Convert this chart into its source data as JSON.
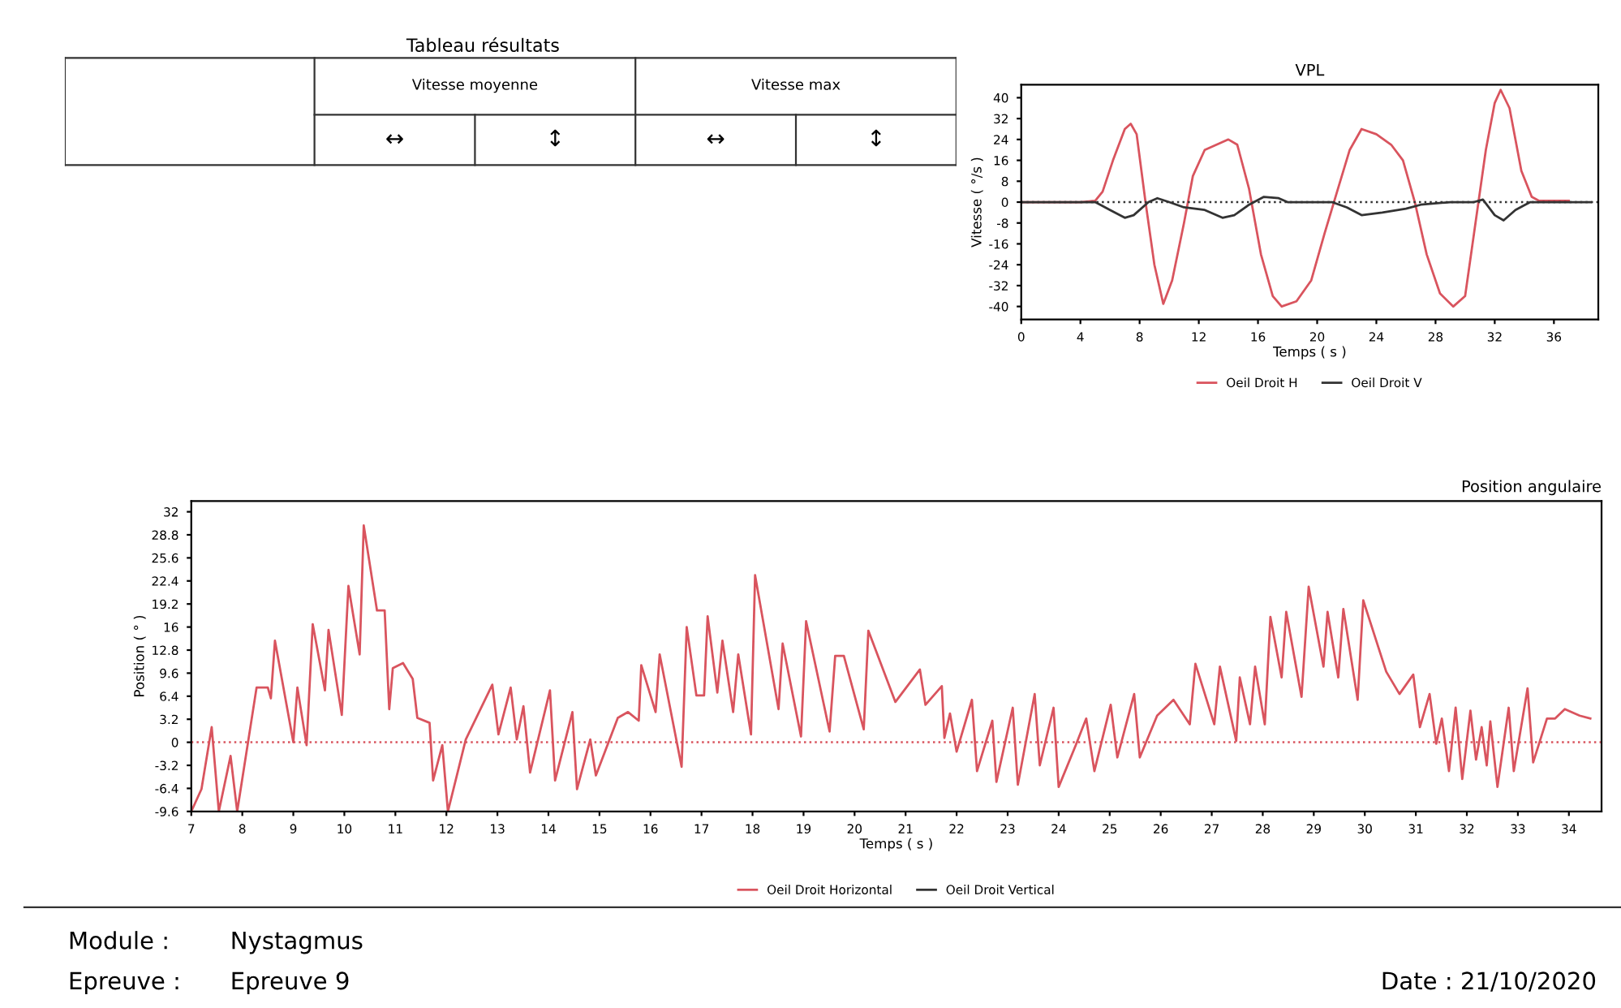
{
  "chart_data": [
    {
      "type": "other",
      "title": "Tableau résultats",
      "annotations": [
        "Vitesse moyenne",
        "Vitesse max",
        "↔",
        "↕",
        "↔",
        "↕"
      ]
    },
    {
      "type": "line",
      "title": "VPL",
      "xlabel": "Temps ( s )",
      "ylabel": "Vitesse ( °/s )",
      "xlim": [
        0,
        39
      ],
      "xticks": [
        0,
        4,
        8,
        12,
        16,
        20,
        24,
        28,
        32,
        36
      ],
      "ylim": [
        -45,
        45
      ],
      "yticks": [
        -40,
        -32,
        -24,
        -16,
        -8,
        0,
        8,
        16,
        24,
        32,
        40
      ],
      "grid": false,
      "legend": "bottom",
      "line_style": "solid",
      "marker": "none",
      "ref_lines": [
        {
          "axis": "y",
          "value": 0,
          "color": "#333333",
          "line_style": "dotted"
        }
      ],
      "series": [
        {
          "name": "Oeil Droit H",
          "color": "#d9545e",
          "x": [
            0,
            4,
            5,
            5.5,
            6.2,
            7,
            7.4,
            7.8,
            8.4,
            9.0,
            9.6,
            10.2,
            11,
            11.6,
            12.4,
            13.2,
            14,
            14.6,
            15.4,
            16.2,
            17,
            17.6,
            18.6,
            19.6,
            20.5,
            21.4,
            22.2,
            23,
            24,
            25,
            25.8,
            26.6,
            27.4,
            28.3,
            29.2,
            30,
            30.6,
            31.4,
            32,
            32.4,
            33,
            33.8,
            34.5,
            35,
            37
          ],
          "values": [
            0,
            0,
            0.5,
            4,
            16,
            28,
            30,
            26,
            0,
            -24,
            -39,
            -30,
            -8,
            10,
            20,
            22,
            24,
            22,
            5,
            -20,
            -36,
            -40,
            -38,
            -30,
            -12,
            5,
            20,
            28,
            26,
            22,
            16,
            0,
            -20,
            -35,
            -40,
            -36,
            -12,
            20,
            38,
            43,
            36,
            12,
            2,
            0.5,
            0.5
          ]
        },
        {
          "name": "Oeil Droit V",
          "color": "#333333",
          "x": [
            0,
            5,
            6,
            7,
            7.6,
            8.6,
            9.2,
            10,
            11,
            12.4,
            13.6,
            14.4,
            15.4,
            16.4,
            17.4,
            18,
            21,
            22,
            23,
            24.4,
            26,
            27,
            29,
            30.6,
            31.2,
            32,
            32.6,
            33.4,
            34.4,
            38.5
          ],
          "values": [
            0,
            0,
            -3,
            -6,
            -5,
            0,
            1.5,
            0,
            -2,
            -3,
            -6,
            -5,
            -1,
            2,
            1.5,
            0,
            0,
            -2,
            -5,
            -4,
            -2.5,
            -1,
            0,
            0,
            1,
            -5,
            -7,
            -3,
            0,
            0
          ]
        }
      ]
    },
    {
      "type": "line",
      "title": "Position angulaire",
      "xlabel": "Temps ( s )",
      "ylabel": "Position ( ° )",
      "xlim": [
        7,
        34.64
      ],
      "xticks": [
        7,
        8,
        9,
        10,
        11,
        12,
        13,
        14,
        15,
        16,
        17,
        18,
        19,
        20,
        21,
        22,
        23,
        24,
        25,
        26,
        27,
        28,
        29,
        30,
        31,
        32,
        33,
        34
      ],
      "ylim": [
        -9.6,
        33.5
      ],
      "yticks": [
        {
          "value": -9.6,
          "label": "-9.6"
        },
        {
          "value": -6.4,
          "label": "-6.4"
        },
        {
          "value": -3.2,
          "label": "-3.2"
        },
        0,
        {
          "value": 3.2,
          "label": "3.2"
        },
        {
          "value": 6.4,
          "label": "6.4"
        },
        {
          "value": 9.6,
          "label": "9.6"
        },
        {
          "value": 12.8,
          "label": "12.8"
        },
        16,
        {
          "value": 19.2,
          "label": "19.2"
        },
        {
          "value": 22.4,
          "label": "22.4"
        },
        {
          "value": 25.6,
          "label": "25.6"
        },
        {
          "value": 28.8,
          "label": "28.8"
        },
        32
      ],
      "grid": false,
      "legend": "bottom",
      "line_style": "solid",
      "marker": "none",
      "ref_lines": [
        {
          "axis": "y",
          "value": 0,
          "color": "#d9545e",
          "line_style": "dotted"
        }
      ],
      "annotations": [
        "Module :",
        "Nystagmus",
        "Epreuve :",
        "Epreuve 9",
        "Date : 21/10/2020"
      ],
      "series": [
        {
          "name": "Oeil Droit Horizontal",
          "color": "#d9545e",
          "x": [
            7.0,
            7.2,
            7.4,
            7.54,
            7.77,
            7.9,
            8.28,
            8.5,
            8.56,
            8.64,
            9.0,
            9.08,
            9.26,
            9.38,
            9.62,
            9.69,
            9.95,
            10.08,
            10.3,
            10.38,
            10.64,
            10.79,
            10.88,
            10.95,
            11.15,
            11.34,
            11.43,
            11.67,
            11.74,
            11.92,
            12.03,
            12.38,
            12.9,
            13.02,
            13.26,
            13.38,
            13.51,
            13.64,
            14.03,
            14.13,
            14.47,
            14.56,
            14.82,
            14.93,
            15.36,
            15.56,
            15.77,
            15.82,
            16.1,
            16.18,
            16.61,
            16.71,
            16.9,
            17.05,
            17.12,
            17.31,
            17.41,
            17.62,
            17.72,
            17.97,
            18.05,
            18.51,
            18.59,
            18.95,
            19.05,
            19.51,
            19.62,
            19.79,
            20.18,
            20.27,
            20.8,
            21.28,
            21.39,
            21.71,
            21.76,
            21.87,
            22.0,
            22.3,
            22.4,
            22.7,
            22.78,
            23.1,
            23.2,
            23.53,
            23.63,
            23.9,
            24.0,
            24.33,
            24.54,
            24.7,
            25.02,
            25.15,
            25.48,
            25.59,
            25.93,
            26.25,
            26.57,
            26.68,
            27.05,
            27.16,
            27.48,
            27.55,
            27.75,
            27.85,
            28.04,
            28.15,
            28.37,
            28.46,
            28.76,
            28.9,
            29.19,
            29.27,
            29.48,
            29.58,
            29.86,
            29.97,
            30.42,
            30.68,
            30.95,
            31.08,
            31.27,
            31.4,
            31.51,
            31.65,
            31.78,
            31.91,
            32.07,
            32.18,
            32.29,
            32.39,
            32.46,
            32.6,
            32.82,
            32.92,
            33.19,
            33.3,
            33.57,
            33.73,
            33.92,
            34.21,
            34.42
          ],
          "values": [
            -9.6,
            -6.5,
            2.1,
            -9.6,
            -1.9,
            -9.6,
            7.6,
            7.6,
            6.1,
            14.1,
            0,
            7.6,
            -0.4,
            16.4,
            7.2,
            15.6,
            3.8,
            21.7,
            12.2,
            30.1,
            18.3,
            18.3,
            4.6,
            10.3,
            11.0,
            8.8,
            3.4,
            2.7,
            -5.3,
            -0.4,
            -9.6,
            0.4,
            8.0,
            1.1,
            7.6,
            0.4,
            5.0,
            -4.2,
            7.2,
            -5.3,
            4.2,
            -6.5,
            0.4,
            -4.6,
            3.4,
            4.2,
            3.0,
            10.7,
            4.2,
            12.2,
            -3.4,
            16.0,
            6.5,
            6.5,
            17.5,
            6.9,
            14.1,
            4.2,
            12.2,
            1.1,
            23.2,
            4.6,
            13.7,
            0.8,
            16.8,
            1.5,
            12.0,
            12.0,
            1.8,
            15.5,
            5.6,
            10.1,
            5.2,
            7.8,
            0.6,
            4.0,
            -1.3,
            5.9,
            -4.0,
            3.0,
            -5.5,
            4.8,
            -5.9,
            6.7,
            -3.2,
            4.8,
            -6.2,
            -0.5,
            3.3,
            -4.0,
            5.2,
            -2.1,
            6.7,
            -2.1,
            3.7,
            5.9,
            2.5,
            10.9,
            2.5,
            10.5,
            0.2,
            9.0,
            2.5,
            10.5,
            2.5,
            17.4,
            9.0,
            18.1,
            6.3,
            21.6,
            10.5,
            18.1,
            9.0,
            18.5,
            5.9,
            19.7,
            9.8,
            6.7,
            9.4,
            2.1,
            6.7,
            -0.2,
            3.3,
            -4.0,
            4.8,
            -5.1,
            4.4,
            -2.4,
            2.1,
            -3.2,
            2.9,
            -6.2,
            4.8,
            -4.0,
            7.5,
            -2.8,
            3.3,
            3.3,
            4.6,
            3.7,
            3.3
          ]
        },
        {
          "name": "Oeil Droit Vertical",
          "color": "#333333",
          "values": [
            null
          ]
        }
      ]
    }
  ]
}
